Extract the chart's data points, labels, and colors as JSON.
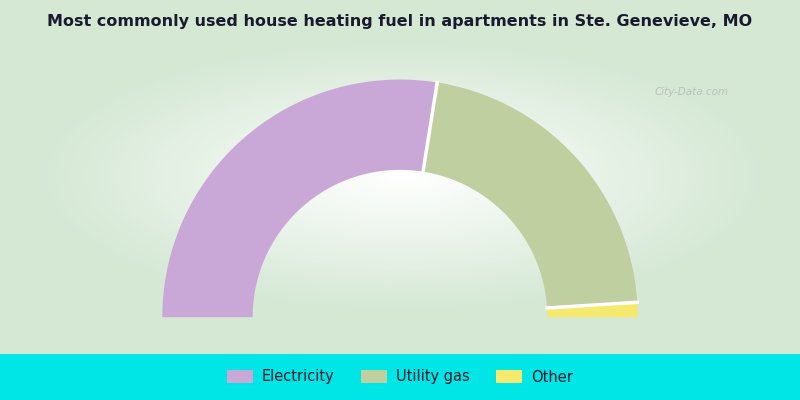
{
  "title": "Most commonly used house heating fuel in apartments in Ste. Genevieve, MO",
  "title_fontsize": 11.5,
  "title_color": "#1a1a2e",
  "slices": [
    {
      "label": "Electricity",
      "value": 55.0,
      "color": "#C9A8D8"
    },
    {
      "label": "Utility gas",
      "value": 43.0,
      "color": "#BFCFA0"
    },
    {
      "label": "Other",
      "value": 2.0,
      "color": "#F5E96E"
    }
  ],
  "legend_bg": "#00E5E5",
  "watermark": "City-Data.com",
  "donut_outer_r": 1.0,
  "donut_inner_r": 0.62,
  "bg_green": [
    0.835,
    0.91,
    0.835
  ],
  "bg_white": [
    1.0,
    1.0,
    1.0
  ]
}
